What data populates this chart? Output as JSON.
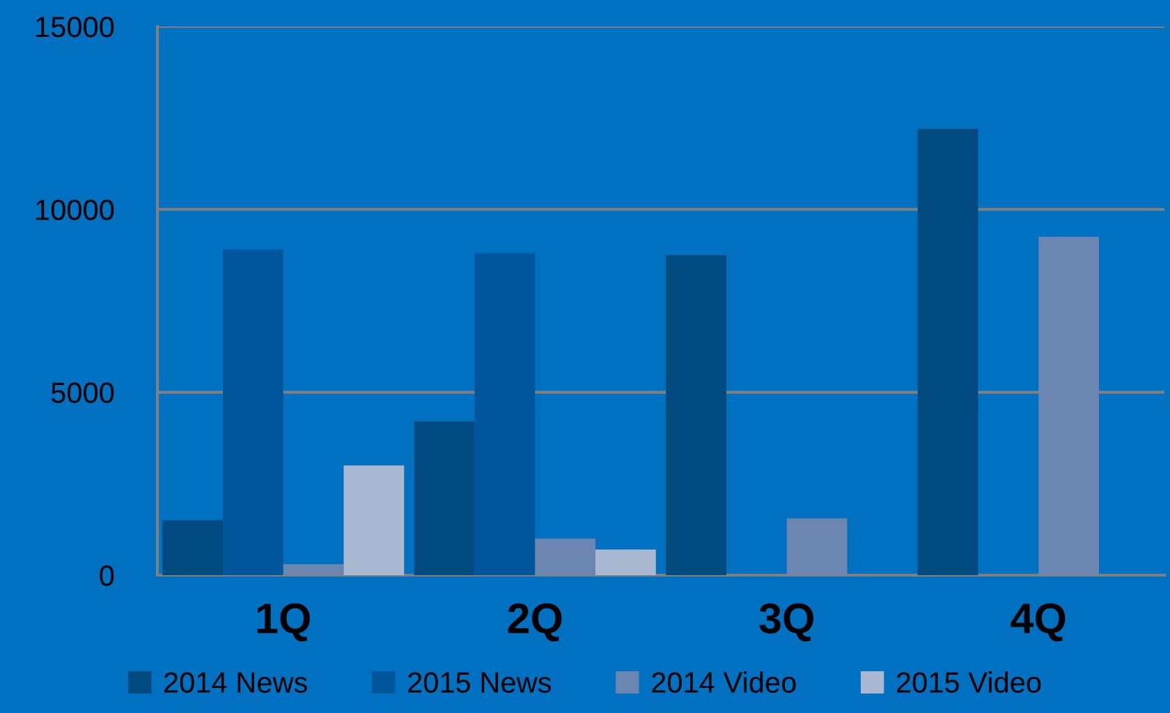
{
  "chart_data": {
    "type": "bar",
    "categories": [
      "1Q",
      "2Q",
      "3Q",
      "4Q"
    ],
    "series": [
      {
        "name": "2014 News",
        "color": "#004a7f",
        "values": [
          1500,
          4200,
          8750,
          12200
        ]
      },
      {
        "name": "2015 News",
        "color": "#00569a",
        "values": [
          8900,
          8800,
          null,
          null
        ]
      },
      {
        "name": "2014 Video",
        "color": "#6a86b1",
        "values": [
          300,
          1000,
          1550,
          9250
        ]
      },
      {
        "name": "2015 Video",
        "color": "#abb8d1",
        "values": [
          3000,
          700,
          null,
          null
        ]
      }
    ],
    "ylim": [
      0,
      15000
    ],
    "yticks": [
      0,
      5000,
      10000,
      15000
    ],
    "grid": "y",
    "legend": "bottom"
  }
}
